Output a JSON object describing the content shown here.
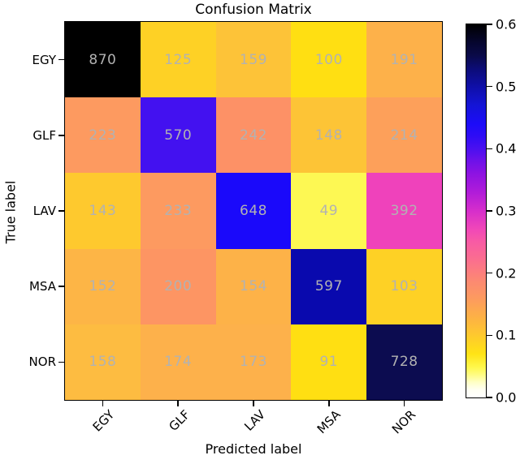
{
  "chart_data": {
    "type": "heatmap",
    "title": "Confusion Matrix",
    "xlabel": "Predicted label",
    "ylabel": "True label",
    "categories": [
      "EGY",
      "GLF",
      "LAV",
      "MSA",
      "NOR"
    ],
    "x_ticklabels": [
      "EGY",
      "GLF",
      "LAV",
      "MSA",
      "NOR"
    ],
    "y_ticklabels": [
      "EGY",
      "GLF",
      "LAV",
      "MSA",
      "NOR"
    ],
    "matrix": [
      [
        870,
        125,
        159,
        100,
        191
      ],
      [
        223,
        570,
        242,
        148,
        214
      ],
      [
        143,
        233,
        648,
        49,
        392
      ],
      [
        152,
        200,
        154,
        597,
        103
      ],
      [
        158,
        174,
        173,
        91,
        728
      ]
    ],
    "cell_colors": [
      [
        "#000000",
        "#fed125",
        "#fdc338",
        "#ffdf12",
        "#fdb14a"
      ],
      [
        "#fd9a60",
        "#4311f0",
        "#fd9166",
        "#fdc436",
        "#fda05a"
      ],
      [
        "#fec92e",
        "#fd9a60",
        "#1a09fa",
        "#fdf853",
        "#ef42bb"
      ],
      [
        "#fdb546",
        "#fd9563",
        "#fdb248",
        "#0909ae",
        "#fed125"
      ],
      [
        "#fdbc41",
        "#fdb14b",
        "#fdb14b",
        "#ffdf12",
        "#0c0c50"
      ]
    ],
    "annotation_color": "#b2b2b2",
    "axis_color": "#000000",
    "background_color": "#ffffff",
    "grid": false,
    "legend_position": "none",
    "colorbar": {
      "position": "right",
      "vmin": 0.0,
      "vmax": 0.6,
      "ticks_top_to_bottom": [
        "0.6",
        "0.5",
        "0.4",
        "0.3",
        "0.2",
        "0.1",
        "0.0"
      ],
      "gradient_bottom_to_top": [
        {
          "pos": 0,
          "color": "#ffffff"
        },
        {
          "pos": 2,
          "color": "#fffff4"
        },
        {
          "pos": 4,
          "color": "#ffffc8"
        },
        {
          "pos": 6,
          "color": "#fffc86"
        },
        {
          "pos": 8,
          "color": "#fff84e"
        },
        {
          "pos": 11.7,
          "color": "#ffe315"
        },
        {
          "pos": 16.7,
          "color": "#fec92e"
        },
        {
          "pos": 21.7,
          "color": "#fdb046"
        },
        {
          "pos": 26.7,
          "color": "#fd9a60"
        },
        {
          "pos": 31.7,
          "color": "#fc8774"
        },
        {
          "pos": 36.7,
          "color": "#fb6f8e"
        },
        {
          "pos": 41.7,
          "color": "#f85ba4"
        },
        {
          "pos": 45,
          "color": "#f148b8"
        },
        {
          "pos": 50,
          "color": "#d62ecb"
        },
        {
          "pos": 55,
          "color": "#b01cd9"
        },
        {
          "pos": 60,
          "color": "#8d13e2"
        },
        {
          "pos": 63.3,
          "color": "#6f11e9"
        },
        {
          "pos": 66.7,
          "color": "#4a10f0"
        },
        {
          "pos": 70,
          "color": "#2f0cf5"
        },
        {
          "pos": 73.3,
          "color": "#1c0cf8"
        },
        {
          "pos": 78.3,
          "color": "#1414d6"
        },
        {
          "pos": 83.3,
          "color": "#0f0fa8"
        },
        {
          "pos": 88,
          "color": "#0c0c78"
        },
        {
          "pos": 91.7,
          "color": "#0a0a48"
        },
        {
          "pos": 95,
          "color": "#060630"
        },
        {
          "pos": 100,
          "color": "#000000"
        }
      ]
    }
  }
}
